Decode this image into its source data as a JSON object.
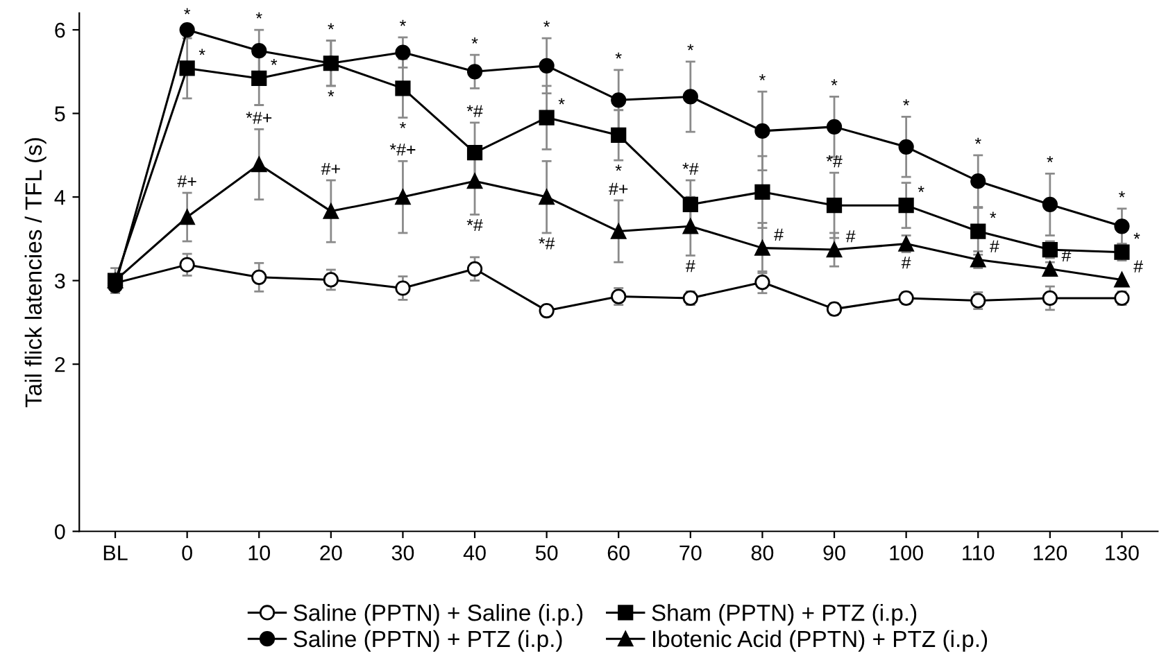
{
  "chart_data": {
    "type": "line",
    "ylabel": "Tail flick latencies / TFL (s)",
    "categories": [
      "BL",
      "0",
      "10",
      "20",
      "30",
      "40",
      "50",
      "60",
      "70",
      "80",
      "90",
      "100",
      "110",
      "120",
      "130"
    ],
    "ylim": [
      0,
      6.2
    ],
    "yticks": [
      0,
      2,
      3,
      4,
      5,
      6
    ],
    "grid": false,
    "legend": "bottom",
    "line_style": "solid",
    "series": [
      {
        "name": "Saline (PPTN) + Saline (i.p.)",
        "color": "#000000",
        "marker": "circle-open",
        "values": [
          2.97,
          3.19,
          3.04,
          3.01,
          2.91,
          3.14,
          2.64,
          2.81,
          2.79,
          2.98,
          2.66,
          2.79,
          2.76,
          2.79,
          2.79
        ],
        "errors": [
          null,
          0.13,
          0.17,
          0.12,
          0.14,
          0.14,
          0.06,
          0.1,
          0.08,
          0.13,
          0.07,
          0.07,
          0.1,
          0.14,
          0.08
        ]
      },
      {
        "name": "Saline (PPTN) + PTZ (i.p.)",
        "color": "#000000",
        "marker": "circle",
        "values": [
          2.94,
          6.0,
          5.75,
          5.6,
          5.73,
          5.5,
          5.57,
          5.16,
          5.2,
          4.79,
          4.84,
          4.6,
          4.19,
          3.91,
          3.65
        ],
        "errors": [
          null,
          0.05,
          0.25,
          0.27,
          0.18,
          0.2,
          0.33,
          0.36,
          0.42,
          0.47,
          0.36,
          0.36,
          0.31,
          0.37,
          0.21
        ]
      },
      {
        "name": "Sham (PPTN) + PTZ (i.p.)",
        "color": "#000000",
        "marker": "square",
        "values": [
          3.0,
          5.54,
          5.42,
          5.6,
          5.3,
          4.53,
          4.95,
          4.74,
          3.91,
          4.06,
          3.9,
          3.9,
          3.59,
          3.37,
          3.34
        ],
        "errors": [
          0.15,
          0.36,
          0.32,
          0.27,
          0.35,
          0.36,
          0.38,
          0.3,
          0.29,
          0.43,
          0.39,
          0.27,
          0.28,
          0.1,
          0.1
        ]
      },
      {
        "name": "Ibotenic Acid (PPTN) + PTZ (i.p.)",
        "color": "#000000",
        "marker": "triangle",
        "values": [
          3.0,
          3.76,
          4.39,
          3.83,
          4.0,
          4.19,
          4.0,
          3.59,
          3.65,
          3.39,
          3.37,
          3.44,
          3.25,
          3.14,
          3.01
        ],
        "errors": [
          null,
          0.29,
          0.42,
          0.37,
          0.43,
          0.4,
          0.43,
          0.37,
          0.35,
          0.3,
          0.2,
          0.1,
          0.1,
          0.08,
          null
        ]
      }
    ],
    "annotations": [
      {
        "text": "*",
        "x": "0",
        "y": 6.05
      },
      {
        "text": "*",
        "x": "10",
        "y": 6.0
      },
      {
        "text": "*",
        "x": "20",
        "y": 5.87
      },
      {
        "text": "*",
        "x": "30",
        "y": 5.91
      },
      {
        "text": "*",
        "x": "40",
        "y": 5.7
      },
      {
        "text": "*",
        "x": "50",
        "y": 5.9
      },
      {
        "text": "*",
        "x": "60",
        "y": 5.52
      },
      {
        "text": "*",
        "x": "70",
        "y": 5.62
      },
      {
        "text": "*",
        "x": "80",
        "y": 5.26
      },
      {
        "text": "*",
        "x": "90",
        "y": 5.2
      },
      {
        "text": "*",
        "x": "100",
        "y": 4.96
      },
      {
        "text": "*",
        "x": "110",
        "y": 4.5
      },
      {
        "text": "*",
        "x": "120",
        "y": 4.28
      },
      {
        "text": "*",
        "x": "130",
        "y": 3.86
      },
      {
        "text": "*",
        "x": "0",
        "y": 5.54
      },
      {
        "text": "*",
        "x": "10",
        "y": 5.42
      },
      {
        "text": "*",
        "x": "20",
        "y": 5.33
      },
      {
        "text": "*",
        "x": "30",
        "y": 4.95
      },
      {
        "text": "*#",
        "x": "40",
        "y": 4.89
      },
      {
        "text": "*",
        "x": "50",
        "y": 4.95
      },
      {
        "text": "*",
        "x": "60",
        "y": 4.44
      },
      {
        "text": "*#",
        "x": "70",
        "y": 4.2
      },
      {
        "text": "*#",
        "x": "90",
        "y": 4.29
      },
      {
        "text": "*",
        "x": "100",
        "y": 3.9
      },
      {
        "text": "*",
        "x": "110",
        "y": 3.59
      },
      {
        "text": "*",
        "x": "130",
        "y": 3.34
      },
      {
        "text": "#+",
        "x": "0",
        "y": 4.05
      },
      {
        "text": "*#+",
        "x": "10",
        "y": 4.81
      },
      {
        "text": "#+",
        "x": "20",
        "y": 4.2
      },
      {
        "text": "*#+",
        "x": "30",
        "y": 4.43
      },
      {
        "text": "*#",
        "x": "40",
        "y": 3.79
      },
      {
        "text": "*#",
        "x": "50",
        "y": 3.57
      },
      {
        "text": "#+",
        "x": "60",
        "y": 3.96
      },
      {
        "text": "#",
        "x": "70",
        "y": 3.3
      },
      {
        "text": "#",
        "x": "80",
        "y": 3.39
      },
      {
        "text": "#",
        "x": "90",
        "y": 3.37
      },
      {
        "text": "#",
        "x": "100",
        "y": 3.34
      },
      {
        "text": "#",
        "x": "110",
        "y": 3.25
      },
      {
        "text": "#",
        "x": "120",
        "y": 3.14
      },
      {
        "text": "#",
        "x": "130",
        "y": 3.01
      }
    ]
  }
}
